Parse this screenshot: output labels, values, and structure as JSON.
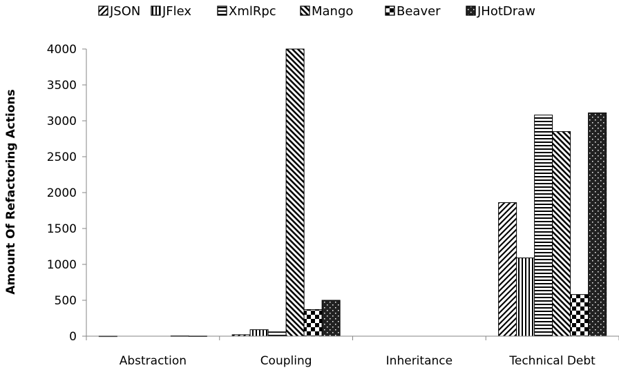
{
  "chart_data": {
    "type": "bar",
    "categories": [
      "Abstraction",
      "Coupling",
      "Inheritance",
      "Technical Debt"
    ],
    "series": [
      {
        "name": "JSON",
        "pattern": "diag-up",
        "values": [
          2,
          20,
          0,
          1860
        ]
      },
      {
        "name": "JFlex",
        "pattern": "vertical",
        "values": [
          0,
          90,
          0,
          1090
        ]
      },
      {
        "name": "XmlRpc",
        "pattern": "horizontal",
        "values": [
          0,
          60,
          0,
          3080
        ]
      },
      {
        "name": "Mango",
        "pattern": "diag-down",
        "values": [
          0,
          4000,
          0,
          2850
        ]
      },
      {
        "name": "Beaver",
        "pattern": "checker",
        "values": [
          5,
          370,
          0,
          580
        ]
      },
      {
        "name": "JHotDraw",
        "pattern": "dots",
        "values": [
          3,
          500,
          0,
          3110
        ]
      }
    ],
    "xlabel": "",
    "ylabel": "Amount Of Refactoring Actions",
    "ylim": [
      0,
      4000
    ],
    "yticks": [
      0,
      500,
      1000,
      1500,
      2000,
      2500,
      3000,
      3500,
      4000
    ],
    "grid": false,
    "legend_position": "top",
    "colors": {
      "bar_fill": "#ffffff",
      "bar_stroke": "#000000",
      "axis": "#868686",
      "text": "#000000"
    }
  }
}
